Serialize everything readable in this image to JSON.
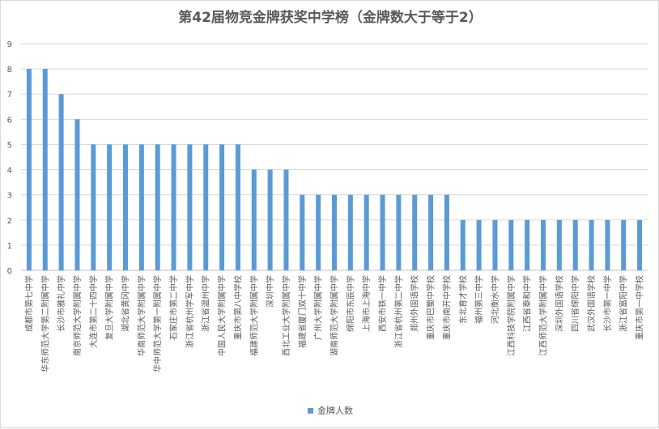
{
  "chart_data": {
    "type": "bar",
    "title": "第42届物竞金牌获奖中学榜（金牌数大于等于2）",
    "categories": [
      "成都市第七中学",
      "华东师范大学第二附属中学",
      "长沙市雅礼中学",
      "南京师范大学附属中学",
      "大连市第二十四中学",
      "复旦大学附属中学",
      "湖北省黄冈中学",
      "华南师范大学附属中学",
      "华中师范大学第一附属中学",
      "石家庄市第二中学",
      "浙江省杭州学军中学",
      "浙江省温州中学",
      "中国人民大学附属中学",
      "重庆市第八中学校",
      "福建师范大学附属中学",
      "深圳中学",
      "西北工业大学附属中学",
      "福建省厦门双十中学",
      "广州大学附属中学",
      "湖南师范大学附属中学",
      "绵阳市东辰中学",
      "上海市上海中学",
      "西安市铁一中学",
      "浙江省杭州第二中学",
      "郑州外国语学校",
      "重庆市巴蜀中学校",
      "重庆市南开中学校",
      "东北育才学校",
      "福州第三中学",
      "河北衡水中学",
      "江西科技学院附属中学",
      "江西省泰和中学",
      "江西师范大学附属中学",
      "深圳外国语学校",
      "四川省绵阳中学",
      "武汉外国语学校",
      "长沙市第一中学",
      "浙江省富阳中学",
      "重庆市第一中学校"
    ],
    "series": [
      {
        "name": "金牌人数",
        "values": [
          8,
          8,
          7,
          6,
          5,
          5,
          5,
          5,
          5,
          5,
          5,
          5,
          5,
          5,
          4,
          4,
          4,
          3,
          3,
          3,
          3,
          3,
          3,
          3,
          3,
          3,
          3,
          2,
          2,
          2,
          2,
          2,
          2,
          2,
          2,
          2,
          2,
          2,
          2
        ],
        "color": "#5b9bd5"
      }
    ],
    "ylim": [
      0,
      9
    ],
    "yticks": [
      "0",
      "1",
      "2",
      "3",
      "4",
      "5",
      "6",
      "7",
      "8",
      "9"
    ],
    "grid": true,
    "legend_position": "bottom",
    "colors": {
      "bar": "#5b9bd5",
      "grid": "#d9d9d9",
      "axis": "#bfbfbf",
      "text": "#595959"
    }
  }
}
